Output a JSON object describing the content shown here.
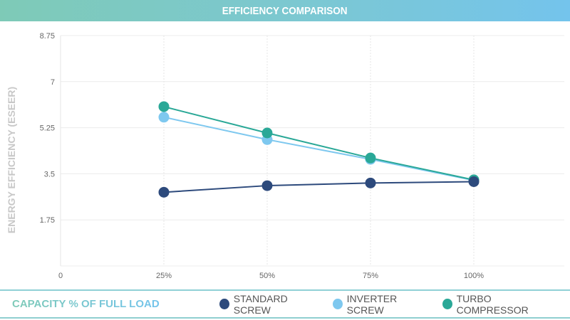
{
  "chart_data": {
    "type": "line",
    "title": "EFFICIENCY COMPARISON",
    "xlabel": "CAPACITY % OF FULL LOAD",
    "ylabel": "ENERGY EFFICIENCY (ESEER)",
    "x_ticks": [
      "0",
      "25%",
      "50%",
      "75%",
      "100%"
    ],
    "y_ticks": [
      "1.75",
      "3.5",
      "5.25",
      "7",
      "8.75"
    ],
    "x_tick_values": [
      0,
      25,
      50,
      75,
      100
    ],
    "y_tick_values": [
      1.75,
      3.5,
      5.25,
      7,
      8.75
    ],
    "xlim": [
      0,
      122
    ],
    "ylim": [
      0,
      8.75
    ],
    "grid": true,
    "legend_position": "bottom-right",
    "x": [
      25,
      50,
      75,
      100
    ],
    "series": [
      {
        "name": "STANDARD SCREW",
        "color": "#2d4a7c",
        "values": [
          2.8,
          3.05,
          3.15,
          3.2
        ]
      },
      {
        "name": "INVERTER SCREW",
        "color": "#7ec8ef",
        "values": [
          5.65,
          4.8,
          4.05,
          3.25
        ]
      },
      {
        "name": "TURBO COMPRESSOR",
        "color": "#2aa897",
        "values": [
          6.05,
          5.05,
          4.1,
          3.27
        ]
      }
    ]
  }
}
